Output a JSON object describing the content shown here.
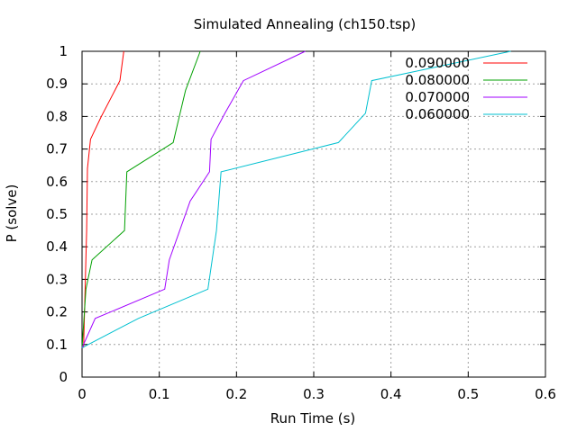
{
  "chart_data": {
    "type": "line",
    "title": "Simulated Annealing (ch150.tsp)",
    "xlabel": "Run Time (s)",
    "ylabel": "P (solve)",
    "xlim": [
      0,
      0.6
    ],
    "ylim": [
      0,
      1
    ],
    "xticks": [
      "0",
      "0.1",
      "0.2",
      "0.3",
      "0.4",
      "0.5",
      "0.6"
    ],
    "yticks": [
      "0",
      "0.1",
      "0.2",
      "0.3",
      "0.4",
      "0.5",
      "0.6",
      "0.7",
      "0.8",
      "0.9",
      "1"
    ],
    "grid": true,
    "legend_position": "top-right",
    "series": [
      {
        "name": "0.090000",
        "color": "#ff0000",
        "points": [
          [
            0.002,
            0.09
          ],
          [
            0.004,
            0.27
          ],
          [
            0.006,
            0.45
          ],
          [
            0.007,
            0.64
          ],
          [
            0.011,
            0.73
          ],
          [
            0.025,
            0.8
          ],
          [
            0.036,
            0.85
          ],
          [
            0.049,
            0.91
          ],
          [
            0.054,
            1.0
          ]
        ]
      },
      {
        "name": "0.080000",
        "color": "#00a000",
        "points": [
          [
            0.0,
            0.09
          ],
          [
            0.005,
            0.27
          ],
          [
            0.013,
            0.36
          ],
          [
            0.055,
            0.45
          ],
          [
            0.058,
            0.63
          ],
          [
            0.118,
            0.72
          ],
          [
            0.124,
            0.78
          ],
          [
            0.134,
            0.88
          ],
          [
            0.153,
            1.0
          ]
        ]
      },
      {
        "name": "0.070000",
        "color": "#a000ff",
        "points": [
          [
            0.0,
            0.09
          ],
          [
            0.017,
            0.18
          ],
          [
            0.107,
            0.27
          ],
          [
            0.113,
            0.36
          ],
          [
            0.14,
            0.54
          ],
          [
            0.165,
            0.63
          ],
          [
            0.167,
            0.73
          ],
          [
            0.185,
            0.81
          ],
          [
            0.209,
            0.91
          ],
          [
            0.289,
            1.0
          ]
        ]
      },
      {
        "name": "0.060000",
        "color": "#00c0d0",
        "points": [
          [
            0.0,
            0.09
          ],
          [
            0.073,
            0.18
          ],
          [
            0.163,
            0.27
          ],
          [
            0.174,
            0.45
          ],
          [
            0.18,
            0.63
          ],
          [
            0.332,
            0.72
          ],
          [
            0.367,
            0.81
          ],
          [
            0.375,
            0.91
          ],
          [
            0.555,
            1.0
          ]
        ]
      }
    ]
  }
}
